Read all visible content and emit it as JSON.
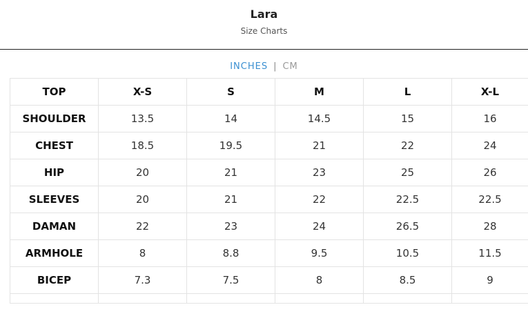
{
  "header": {
    "title": "Lara",
    "subtitle": "Size Charts"
  },
  "units": {
    "active": "INCHES",
    "separator": "|",
    "inactive": "CM"
  },
  "table": {
    "columns": [
      "TOP",
      "X-S",
      "S",
      "M",
      "L",
      "X-L"
    ],
    "rows": [
      {
        "label": "SHOULDER",
        "values": [
          "13.5",
          "14",
          "14.5",
          "15",
          "16"
        ]
      },
      {
        "label": "CHEST",
        "values": [
          "18.5",
          "19.5",
          "21",
          "22",
          "24"
        ]
      },
      {
        "label": "HIP",
        "values": [
          "20",
          "21",
          "23",
          "25",
          "26"
        ]
      },
      {
        "label": "SLEEVES",
        "values": [
          "20",
          "21",
          "22",
          "22.5",
          "22.5"
        ]
      },
      {
        "label": "DAMAN",
        "values": [
          "22",
          "23",
          "24",
          "26.5",
          "28"
        ]
      },
      {
        "label": "ARMHOLE",
        "values": [
          "8",
          "8.8",
          "9.5",
          "10.5",
          "11.5"
        ]
      },
      {
        "label": "BICEP",
        "values": [
          "7.3",
          "7.5",
          "8",
          "8.5",
          "9"
        ]
      }
    ]
  }
}
